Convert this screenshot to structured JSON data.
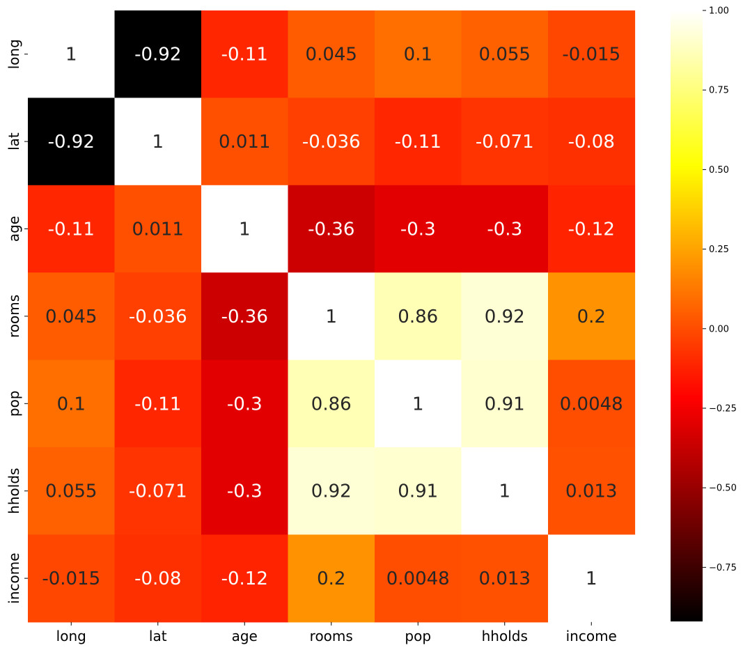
{
  "chart_data": {
    "type": "heatmap",
    "title": "",
    "xlabel": "",
    "ylabel": "",
    "x_labels": [
      "long",
      "lat",
      "age",
      "rooms",
      "pop",
      "hholds",
      "income"
    ],
    "y_labels": [
      "long",
      "lat",
      "age",
      "rooms",
      "pop",
      "hholds",
      "income"
    ],
    "values": [
      [
        1,
        -0.92,
        -0.11,
        0.045,
        0.1,
        0.055,
        -0.015
      ],
      [
        -0.92,
        1,
        0.011,
        -0.036,
        -0.11,
        -0.071,
        -0.08
      ],
      [
        -0.11,
        0.011,
        1,
        -0.36,
        -0.3,
        -0.3,
        -0.12
      ],
      [
        0.045,
        -0.036,
        -0.36,
        1,
        0.86,
        0.92,
        0.2
      ],
      [
        0.1,
        -0.11,
        -0.3,
        0.86,
        1,
        0.91,
        0.0048
      ],
      [
        0.055,
        -0.071,
        -0.3,
        0.92,
        0.91,
        1,
        0.013
      ],
      [
        -0.015,
        -0.08,
        -0.12,
        0.2,
        0.0048,
        0.013,
        1
      ]
    ],
    "value_labels": [
      [
        "1",
        "-0.92",
        "-0.11",
        "0.045",
        "0.1",
        "0.055",
        "-0.015"
      ],
      [
        "-0.92",
        "1",
        "0.011",
        "-0.036",
        "-0.11",
        "-0.071",
        "-0.08"
      ],
      [
        "-0.11",
        "0.011",
        "1",
        "-0.36",
        "-0.3",
        "-0.3",
        "-0.12"
      ],
      [
        "0.045",
        "-0.036",
        "-0.36",
        "1",
        "0.86",
        "0.92",
        "0.2"
      ],
      [
        "0.1",
        "-0.11",
        "-0.3",
        "0.86",
        "1",
        "0.91",
        "0.0048"
      ],
      [
        "0.055",
        "-0.071",
        "-0.3",
        "0.92",
        "0.91",
        "1",
        "0.013"
      ],
      [
        "-0.015",
        "-0.08",
        "-0.12",
        "0.2",
        "0.0048",
        "0.013",
        "1"
      ]
    ],
    "colormap": "hot",
    "colorbar": {
      "min": -0.92,
      "max": 1.0,
      "ticks": [
        1.0,
        0.75,
        0.5,
        0.25,
        0.0,
        -0.25,
        -0.5,
        -0.75
      ],
      "tick_labels": [
        "1.00",
        "0.75",
        "0.50",
        "0.25",
        "0.00",
        "−0.25",
        "−0.50",
        "−0.75"
      ],
      "placement": "right"
    },
    "annotated": true,
    "grid": false
  }
}
